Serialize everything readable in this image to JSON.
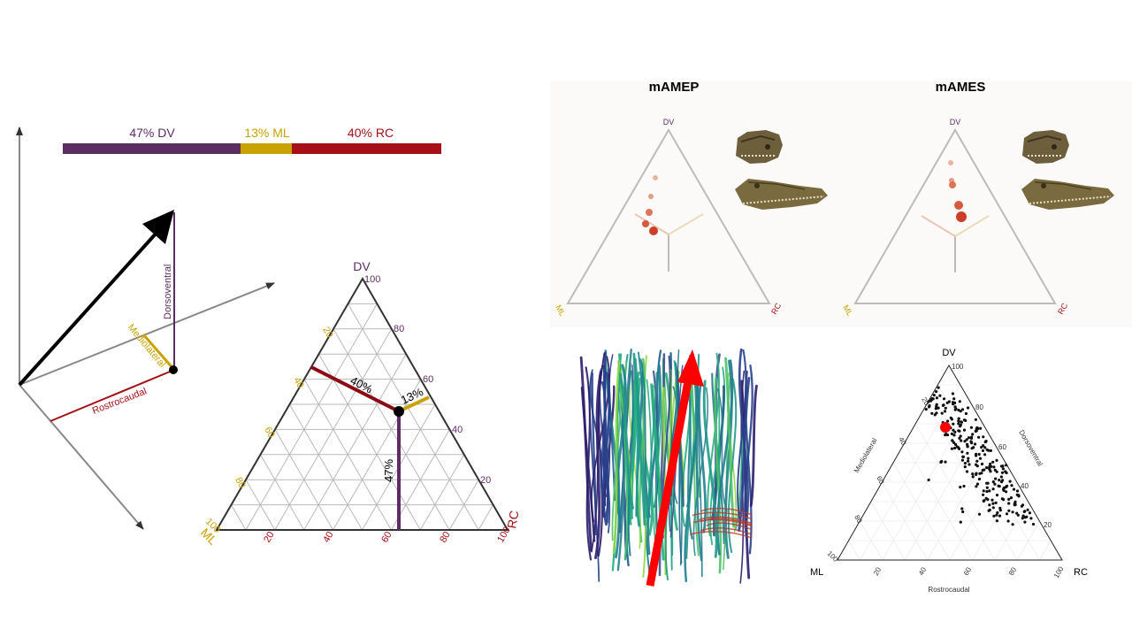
{
  "bar": {
    "segments": [
      {
        "label": "47% DV",
        "value": 47,
        "color": "#5c2d63"
      },
      {
        "label": "13% ML",
        "value": 13,
        "color": "#c9a200"
      },
      {
        "label": "40% RC",
        "value": 40,
        "color": "#a50f15"
      }
    ]
  },
  "vector_diagram": {
    "dorsoventral_label": "Dorsoventral",
    "mediolateral_label": "Mediolateral",
    "rostrocaudal_label": "Rostrocaudal"
  },
  "ternary_main": {
    "apex_dv": "DV",
    "apex_ml": "ML",
    "apex_rc": "RC",
    "dv_ticks": [
      "20",
      "40",
      "60",
      "80",
      "100"
    ],
    "rc_ticks": [
      "20",
      "40",
      "60",
      "80",
      "100"
    ],
    "ml_ticks": [
      "20",
      "40",
      "60",
      "80",
      "100"
    ],
    "pct_rc": "40%",
    "pct_ml": "13%",
    "pct_dv": "47%",
    "point": {
      "DV": 47,
      "ML": 13,
      "RC": 40
    }
  },
  "ternary_amep": {
    "title": "mAMEP",
    "apex_dv": "DV",
    "apex_ml": "ML",
    "apex_rc": "RC"
  },
  "ternary_ames": {
    "title": "mAMES",
    "apex_dv": "DV",
    "apex_ml": "ML",
    "apex_rc": "RC"
  },
  "ternary_scatter": {
    "apex_dv": "DV",
    "apex_ml": "ML",
    "apex_rc": "RC",
    "left_axis": "Mediolateral",
    "right_axis": "Dorsoventral",
    "bottom_axis": "Rostrocaudal",
    "right_ticks": [
      "20",
      "40",
      "60",
      "80",
      "100"
    ],
    "left_ticks": [
      "20",
      "40",
      "60",
      "80",
      "100"
    ],
    "bottom_ticks": [
      "20",
      "40",
      "60",
      "80",
      "100"
    ]
  },
  "colors": {
    "dv": "#5c2d63",
    "ml": "#c9a200",
    "rc": "#a50f15",
    "arrow": "#ff0000"
  }
}
